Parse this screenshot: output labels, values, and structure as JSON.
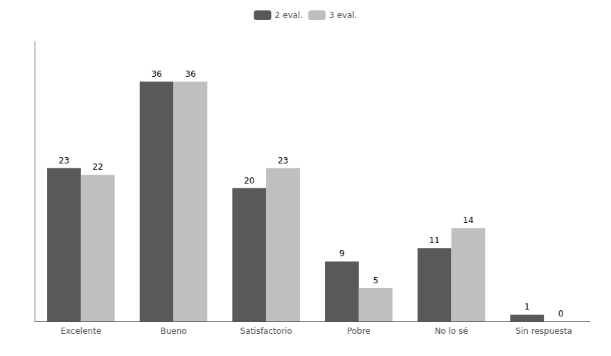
{
  "chart_data": {
    "type": "bar",
    "categories": [
      "Excelente",
      "Bueno",
      "Satisfactorio",
      "Pobre",
      "No lo sé",
      "Sin respuesta"
    ],
    "series": [
      {
        "name": "2 eval.",
        "color": "#595959",
        "values": [
          23,
          36,
          20,
          9,
          11,
          1
        ]
      },
      {
        "name": "3 eval.",
        "color": "#bfbfbf",
        "values": [
          22,
          36,
          23,
          5,
          14,
          0
        ]
      }
    ],
    "ylim": [
      0,
      42
    ],
    "grid": false,
    "legend": "top",
    "data_labels": true,
    "tick_labels": "x"
  }
}
